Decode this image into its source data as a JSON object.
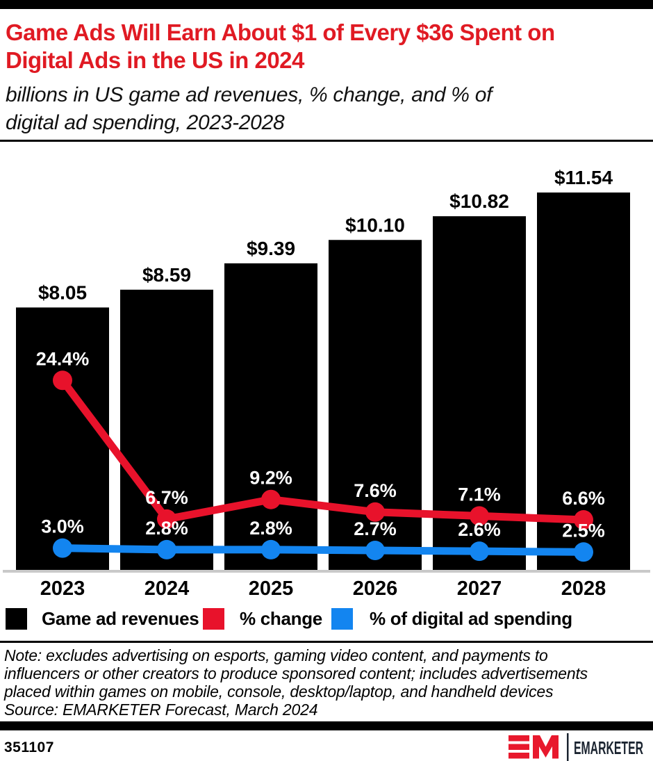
{
  "header": {
    "title_display": "Game Ads Will Earn About $1 of Every $36 Spent on\nDigital Ads in the US in 2024",
    "subtitle_display": "billions in US game ad revenues, % change, and % of\ndigital ad spending, 2023-2028"
  },
  "chart_data": {
    "type": "combo-bar-line",
    "title": "Game Ads Will Earn About $1 of Every $36 Spent on Digital Ads in the US in 2024",
    "subtitle": "billions in US game ad revenues, % change, and % of digital ad spending, 2023-2028",
    "categories": [
      "2023",
      "2024",
      "2025",
      "2026",
      "2027",
      "2028"
    ],
    "series": [
      {
        "name": "Game ad revenues",
        "type": "bar",
        "unit": "billions of US dollars",
        "color": "#000000",
        "values": [
          8.05,
          8.59,
          9.39,
          10.1,
          10.82,
          11.54
        ],
        "labels": [
          "$8.05",
          "$8.59",
          "$9.39",
          "$10.10",
          "$10.82",
          "$11.54"
        ]
      },
      {
        "name": "% change",
        "type": "line",
        "unit": "%",
        "color": "#e8122b",
        "values": [
          24.4,
          6.7,
          9.2,
          7.6,
          7.1,
          6.6
        ],
        "labels": [
          "24.4%",
          "6.7%",
          "9.2%",
          "7.6%",
          "7.1%",
          "6.6%"
        ]
      },
      {
        "name": "% of digital ad spending",
        "type": "line",
        "unit": "%",
        "color": "#1385f0",
        "values": [
          3.0,
          2.8,
          2.8,
          2.7,
          2.6,
          2.5
        ],
        "labels": [
          "3.0%",
          "2.8%",
          "2.8%",
          "2.7%",
          "2.6%",
          "2.5%"
        ]
      }
    ],
    "legend_position": "bottom",
    "grid": false,
    "bar_axis": {
      "min": 0,
      "max": 13
    },
    "line_axis": {
      "min": 0,
      "max": 55
    },
    "colors": {
      "bar_label_text": "#000000",
      "line_label_text": "#ffffff",
      "baseline": "#c9c9c9",
      "year_label_text": "#000000"
    }
  },
  "footnote": {
    "note": "Note: excludes advertising on esports, gaming video content, and payments to\ninfluencers or other creators to produce sponsored content; includes advertisements\nplaced within games on mobile, console, desktop/laptop, and handheld devices",
    "source": "Source: EMARKETER Forecast, March 2024"
  },
  "footer": {
    "chart_id": "351107",
    "brand_name": "EMARKETER",
    "brand_mark": "EM",
    "brand_red": "#e8192d",
    "brand_dark": "#1b2430"
  },
  "style": {
    "title_red": "#e01a23",
    "top_bar_black": "#000000"
  }
}
